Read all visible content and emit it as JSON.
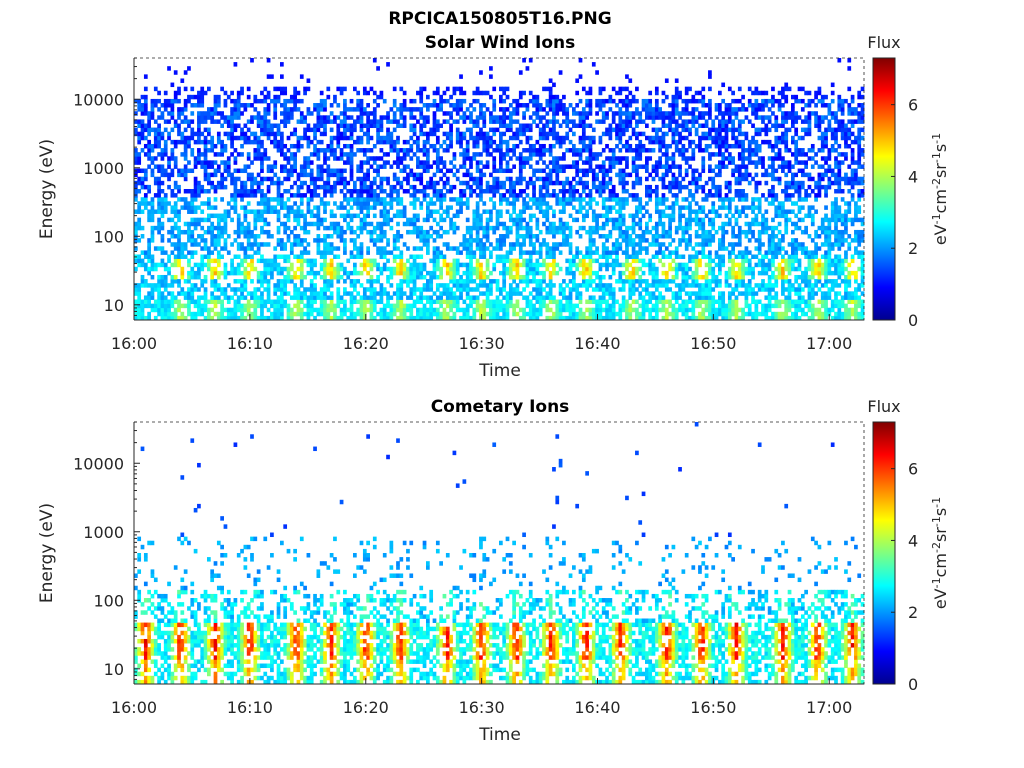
{
  "figure_title": "RPCICA150805T16.PNG",
  "chart_data": [
    {
      "type": "heatmap",
      "title": "Solar Wind Ions",
      "xlabel": "Time",
      "ylabel": "Energy (eV)",
      "y_scale": "log",
      "ylim": [
        6,
        40000
      ],
      "yticks": [
        10,
        100,
        1000,
        10000
      ],
      "ytick_labels": [
        "10",
        "100",
        "1000",
        "10000"
      ],
      "xticks": [
        "16:00",
        "16:10",
        "16:20",
        "16:30",
        "16:40",
        "16:50",
        "17:00"
      ],
      "xlim": [
        "16:00",
        "17:03"
      ],
      "colorbar": {
        "title": "Flux",
        "label": "eV-1cm-2sr-1s-1",
        "range": [
          0,
          7.3
        ],
        "ticks": [
          0,
          2,
          4,
          6
        ],
        "tick_labels": [
          "0",
          "2",
          "4",
          "6"
        ]
      },
      "bursts_at": [
        "16:04",
        "16:07",
        "16:10",
        "16:14",
        "16:17",
        "16:20",
        "16:23",
        "16:27",
        "16:30",
        "16:33",
        "16:36",
        "16:39",
        "16:43",
        "16:46",
        "16:49",
        "16:52",
        "16:56",
        "16:59",
        "17:02"
      ]
    },
    {
      "type": "heatmap",
      "title": "Cometary Ions",
      "xlabel": "Time",
      "ylabel": "Energy (eV)",
      "y_scale": "log",
      "ylim": [
        6,
        40000
      ],
      "yticks": [
        10,
        100,
        1000,
        10000
      ],
      "ytick_labels": [
        "10",
        "100",
        "1000",
        "10000"
      ],
      "xticks": [
        "16:00",
        "16:10",
        "16:20",
        "16:30",
        "16:40",
        "16:50",
        "17:00"
      ],
      "xlim": [
        "16:00",
        "17:03"
      ],
      "colorbar": {
        "title": "Flux",
        "label": "eV-1cm-2sr-1s-1",
        "range": [
          0,
          7.3
        ],
        "ticks": [
          0,
          2,
          4,
          6
        ],
        "tick_labels": [
          "0",
          "2",
          "4",
          "6"
        ]
      },
      "bursts_at": [
        "16:01",
        "16:04",
        "16:07",
        "16:10",
        "16:14",
        "16:17",
        "16:20",
        "16:23",
        "16:27",
        "16:30",
        "16:33",
        "16:36",
        "16:39",
        "16:42",
        "16:46",
        "16:49",
        "16:52",
        "16:56",
        "16:59",
        "17:02"
      ]
    }
  ]
}
